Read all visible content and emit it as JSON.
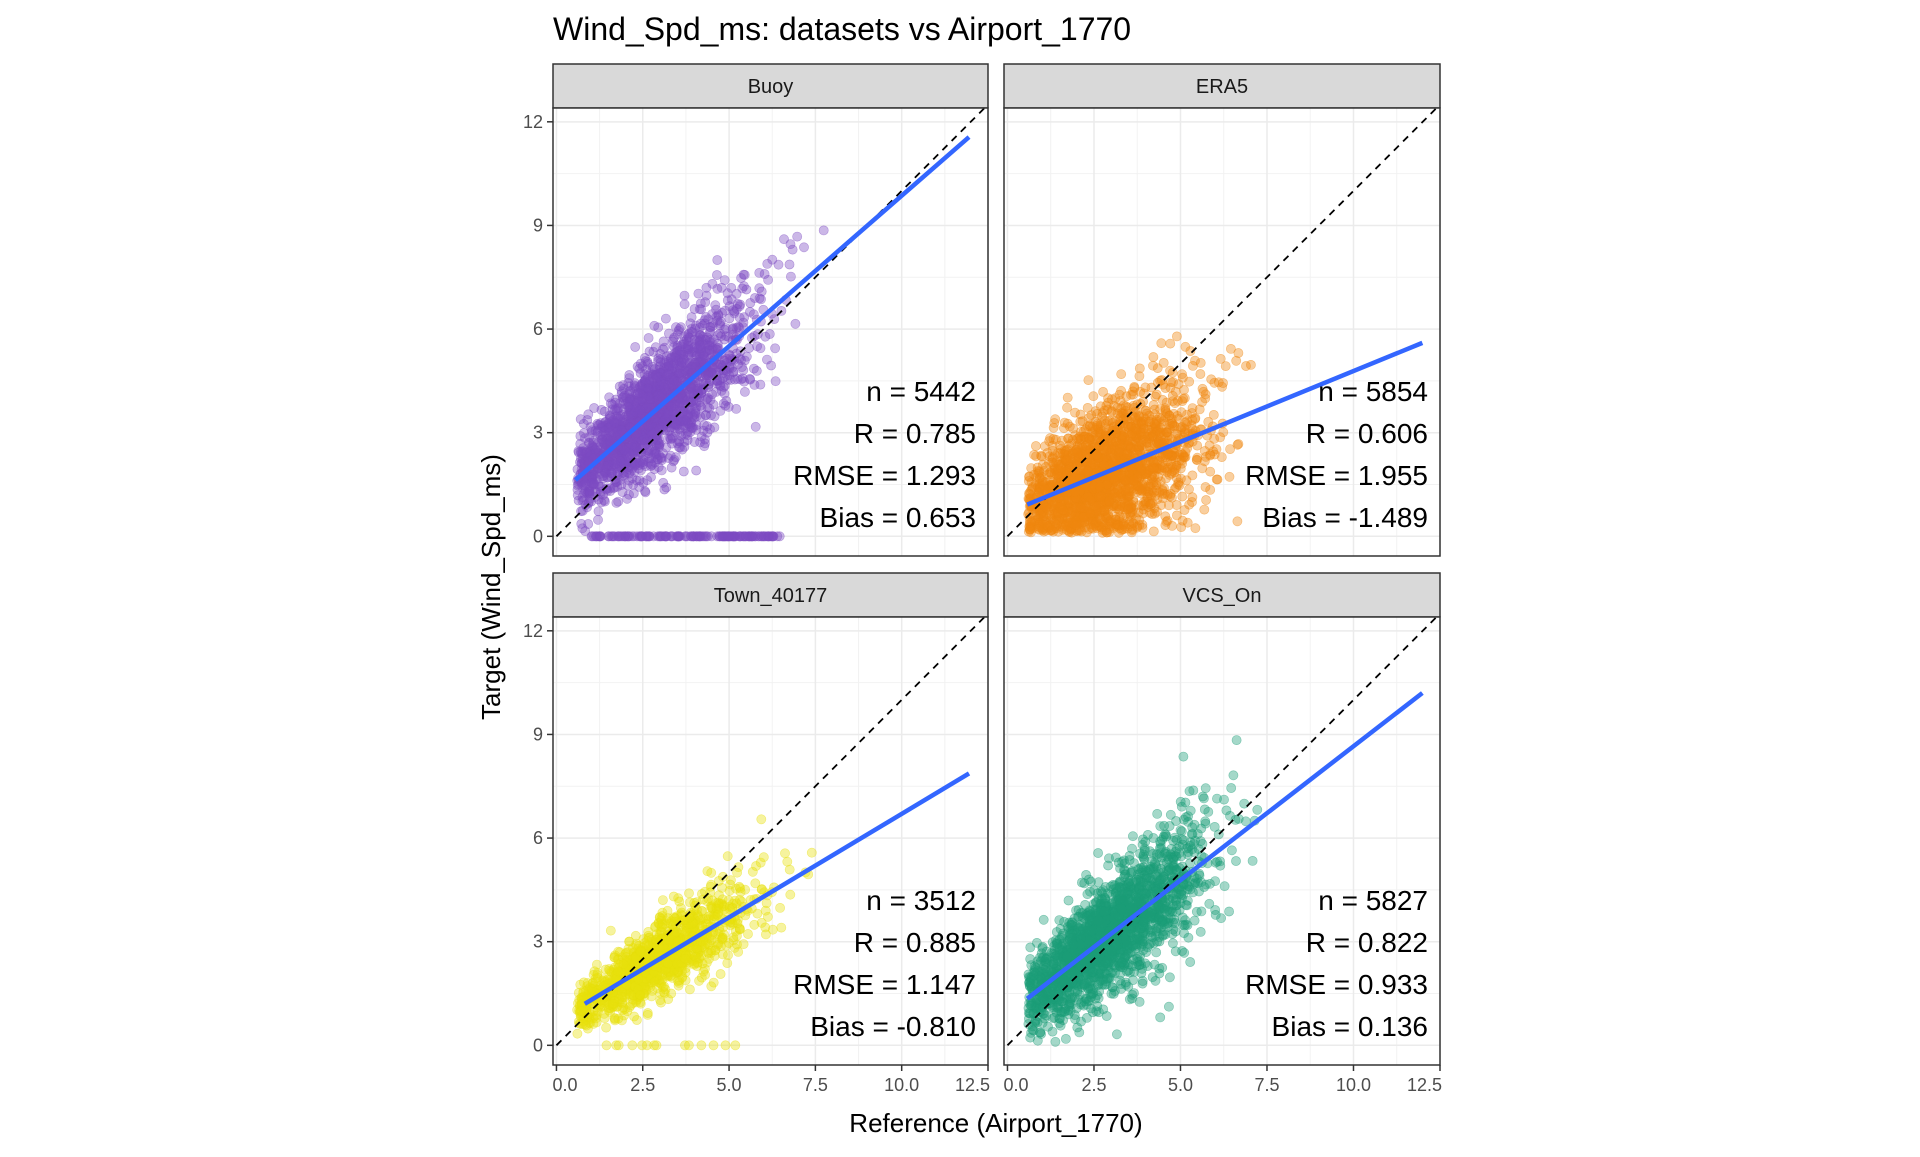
{
  "chart_data": {
    "type": "scatter",
    "title": "Wind_Spd_ms: datasets vs Airport_1770",
    "xlabel": "Reference (Airport_1770)",
    "ylabel": "Target (Wind_Spd_ms)",
    "xlim": [
      -0.1,
      12.5
    ],
    "ylim": [
      -0.57,
      12.4
    ],
    "x_ticks": [
      "0.0",
      "2.5",
      "5.0",
      "7.5",
      "10.0",
      "12.5"
    ],
    "x_tick_values": [
      0,
      2.5,
      5,
      7.5,
      10,
      12.5
    ],
    "y_ticks": [
      "0",
      "3",
      "6",
      "9",
      "12"
    ],
    "y_tick_values": [
      0,
      3,
      6,
      9,
      12
    ],
    "grid": true,
    "reference_line": "1:1 dashed",
    "fit_line_color": "#3366FF",
    "panels": [
      {
        "name": "Buoy",
        "color": "#7E4CC2",
        "n": 5442,
        "stats": [
          "n = 5442",
          "R = 0.785",
          "RMSE = 1.293",
          "Bias = 0.653"
        ],
        "fit": {
          "x": [
            0.55,
            11.95
          ],
          "y": [
            1.63,
            11.56
          ]
        }
      },
      {
        "name": "ERA5",
        "color": "#F0870F",
        "n": 5854,
        "stats": [
          "n = 5854",
          "R = 0.606",
          "RMSE = 1.955",
          "Bias = -1.489"
        ],
        "fit": {
          "x": [
            0.57,
            11.99
          ],
          "y": [
            0.92,
            5.6
          ]
        }
      },
      {
        "name": "Town_40177",
        "color": "#E8E00C",
        "n": 3512,
        "stats": [
          "n = 3512",
          "R = 0.885",
          "RMSE = 1.147",
          "Bias = -0.810"
        ],
        "fit": {
          "x": [
            0.82,
            11.95
          ],
          "y": [
            1.2,
            7.87
          ]
        }
      },
      {
        "name": "VCS_On",
        "color": "#1B9E77",
        "n": 5827,
        "stats": [
          "n = 5827",
          "R = 0.822",
          "RMSE = 0.933",
          "Bias = 0.136"
        ],
        "fit": {
          "x": [
            0.57,
            11.99
          ],
          "y": [
            1.35,
            10.2
          ]
        }
      }
    ]
  }
}
